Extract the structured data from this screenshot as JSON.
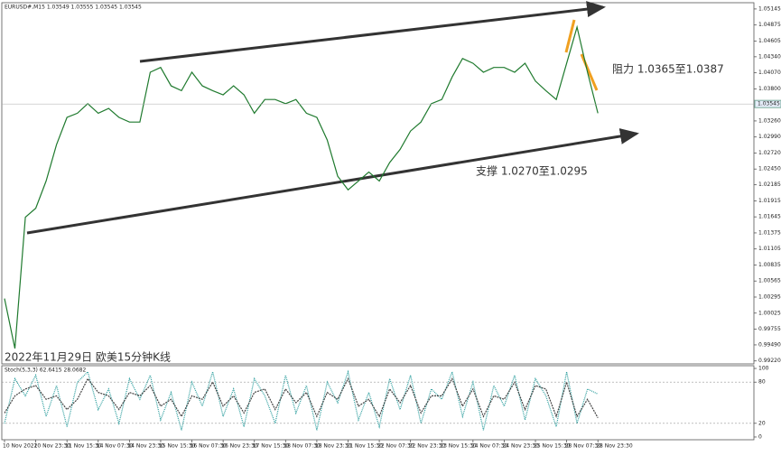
{
  "chart_data": [
    {
      "type": "line",
      "title": "EURUSD#,M15 1.03549 1.03555 1.03545 1.03545",
      "annotations": [
        "阻力 1.0365至1.0387",
        "支撑 1.0270至1.0295",
        "2022年11月29日 欧美15分钟K线"
      ],
      "last_price": 1.03545,
      "color": "#1f7a2e",
      "categories": [
        "10 Nov 2022",
        null,
        null,
        "10 Nov 23:30",
        null,
        null,
        "11 Nov 15:30",
        null,
        null,
        "14 Nov 07:30",
        null,
        null,
        "14 Nov 23:30",
        null,
        null,
        "15 Nov 15:30",
        null,
        null,
        "16 Nov 07:30",
        null,
        null,
        "16 Nov 23:30",
        null,
        null,
        "17 Nov 15:30",
        null,
        null,
        "18 Nov 07:30",
        null,
        null,
        "18 Nov 23:30",
        null,
        null,
        "21 Nov 15:30",
        null,
        null,
        "22 Nov 07:30",
        null,
        null,
        "22 Nov 23:30",
        null,
        null,
        "23 Nov 15:30",
        null,
        null,
        "24 Nov 07:30",
        null,
        null,
        "24 Nov 23:30",
        null,
        null,
        "25 Nov 15:30",
        null,
        null,
        "28 Nov 07:30",
        null,
        null,
        "28 Nov 23:30"
      ],
      "values": [
        1.0027,
        0.9943,
        1.0164,
        1.0179,
        1.0225,
        1.0286,
        1.0332,
        1.0339,
        1.0355,
        1.0339,
        1.0347,
        1.0332,
        1.0324,
        1.0324,
        1.0408,
        1.0416,
        1.0385,
        1.0377,
        1.0408,
        1.0385,
        1.0377,
        1.037,
        1.0385,
        1.037,
        1.0339,
        1.0362,
        1.0362,
        1.0355,
        1.0362,
        1.0339,
        1.0332,
        1.0294,
        1.0233,
        1.021,
        1.0225,
        1.024,
        1.0225,
        1.0256,
        1.0278,
        1.0309,
        1.0324,
        1.0355,
        1.0362,
        1.04,
        1.0431,
        1.0423,
        1.0408,
        1.0416,
        1.0416,
        1.0408,
        1.0423,
        1.0393,
        1.0377,
        1.0362,
        1.0423,
        1.0484,
        1.0408,
        1.0339
      ],
      "ylim": [
        0.9917,
        1.0525
      ],
      "yticks": [
        1.05145,
        1.04875,
        1.04605,
        {
          "value": 1.0434,
          "label": "1.04340"
        },
        {
          "value": 1.0407,
          "label": "1.04070"
        },
        {
          "value": 1.038,
          "label": "1.03800"
        },
        {
          "value": 1.0326,
          "label": "1.03260"
        },
        {
          "value": 1.0299,
          "label": "1.02990"
        },
        {
          "value": 1.0272,
          "label": "1.02720"
        },
        {
          "value": 1.0245,
          "label": "1.02450"
        },
        1.02185,
        1.01915,
        1.01645,
        1.01375,
        1.01105,
        1.00835,
        1.00565,
        1.00295,
        1.00025,
        0.99755,
        {
          "value": 0.9949,
          "label": "0.99490"
        },
        {
          "value": 0.9922,
          "label": "0.99220"
        }
      ]
    },
    {
      "type": "line",
      "title": "Stoch(5,3,3) 62.6415 28.0682",
      "series": [
        {
          "color": "#2a9d9d",
          "values": [
            20,
            85,
            60,
            90,
            30,
            75,
            15,
            80,
            95,
            40,
            70,
            20,
            85,
            55,
            90,
            25,
            65,
            10,
            80,
            45,
            95,
            30,
            70,
            15,
            85,
            60,
            20,
            90,
            35,
            75,
            10,
            80,
            50,
            95,
            25,
            65,
            15,
            85,
            40,
            90,
            20,
            70,
            55,
            95,
            30,
            80,
            10,
            75,
            45,
            90,
            25,
            85,
            60,
            15,
            95,
            20,
            70,
            62.64
          ]
        },
        {
          "color": "#444444",
          "values": [
            35,
            60,
            70,
            75,
            55,
            60,
            40,
            55,
            85,
            65,
            60,
            40,
            65,
            60,
            75,
            45,
            55,
            30,
            60,
            55,
            80,
            45,
            60,
            35,
            65,
            70,
            40,
            70,
            50,
            65,
            30,
            65,
            55,
            85,
            45,
            55,
            30,
            70,
            50,
            75,
            35,
            60,
            60,
            85,
            45,
            70,
            30,
            60,
            55,
            80,
            40,
            75,
            70,
            30,
            80,
            30,
            55,
            28.07
          ]
        }
      ],
      "ylim": [
        -4,
        104
      ],
      "yticks": [
        100,
        80,
        20,
        0
      ],
      "levels": [
        80,
        20
      ]
    }
  ]
}
